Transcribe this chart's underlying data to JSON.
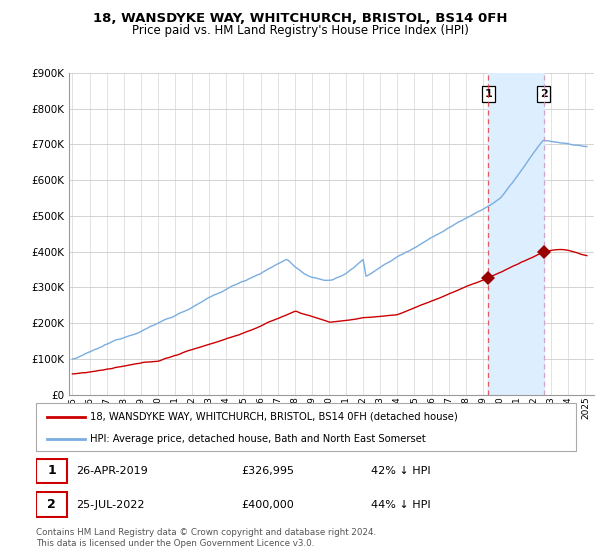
{
  "title": "18, WANSDYKE WAY, WHITCHURCH, BRISTOL, BS14 0FH",
  "subtitle": "Price paid vs. HM Land Registry's House Price Index (HPI)",
  "ylim": [
    0,
    900000
  ],
  "yticks": [
    0,
    100000,
    200000,
    300000,
    400000,
    500000,
    600000,
    700000,
    800000,
    900000
  ],
  "ytick_labels": [
    "£0",
    "£100K",
    "£200K",
    "£300K",
    "£400K",
    "£500K",
    "£600K",
    "£700K",
    "£800K",
    "£900K"
  ],
  "xlim_start": 1994.8,
  "xlim_end": 2025.5,
  "red_line_label": "18, WANSDYKE WAY, WHITCHURCH, BRISTOL, BS14 0FH (detached house)",
  "blue_line_label": "HPI: Average price, detached house, Bath and North East Somerset",
  "marker1_date": "26-APR-2019",
  "marker1_price": 326995,
  "marker1_pct": "42% ↓ HPI",
  "marker1_year": 2019.32,
  "marker2_date": "25-JUL-2022",
  "marker2_price": 400000,
  "marker2_pct": "44% ↓ HPI",
  "marker2_year": 2022.56,
  "footer": "Contains HM Land Registry data © Crown copyright and database right 2024.\nThis data is licensed under the Open Government Licence v3.0.",
  "red_color": "#cc0000",
  "blue_color": "#7aade0",
  "shade_color": "#ddeeff",
  "marker_color": "#990000",
  "background_color": "#ffffff",
  "grid_color": "#cccccc",
  "title_fontsize": 9.5,
  "subtitle_fontsize": 8.5
}
